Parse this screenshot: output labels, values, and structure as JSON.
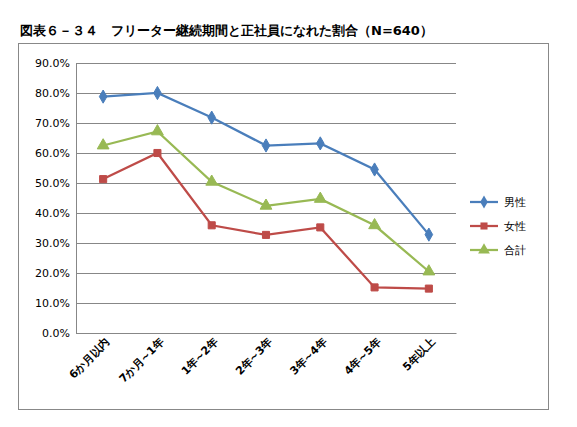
{
  "chart_data": {
    "type": "line",
    "title": "図表６－３４　フリーター継続期間と正社員になれた割合（N=640）",
    "categories": [
      "6か月以内",
      "7か月~1年",
      "1年~2年",
      "2年~3年",
      "3年~4年",
      "4年~5年",
      "5年以上"
    ],
    "series": [
      {
        "name": "男性",
        "color": "#4a7ebb",
        "marker": "diamond",
        "values": [
          78.8,
          80.0,
          71.8,
          62.5,
          63.2,
          54.5,
          32.8
        ]
      },
      {
        "name": "女性",
        "color": "#be4b48",
        "marker": "square",
        "values": [
          51.3,
          60.0,
          35.9,
          32.7,
          35.2,
          15.2,
          14.8
        ]
      },
      {
        "name": "合計",
        "color": "#98b954",
        "marker": "triangle",
        "values": [
          62.5,
          67.2,
          50.4,
          42.4,
          44.7,
          35.9,
          20.5
        ]
      }
    ],
    "ylim": [
      0,
      90
    ],
    "yticks": [
      {
        "value": 0,
        "label": "0.0%"
      },
      {
        "value": 10,
        "label": "10.0%"
      },
      {
        "value": 20,
        "label": "20.0%"
      },
      {
        "value": 30,
        "label": "30.0%"
      },
      {
        "value": 40,
        "label": "40.0%"
      },
      {
        "value": 50,
        "label": "50.0%"
      },
      {
        "value": 60,
        "label": "60.0%"
      },
      {
        "value": 70,
        "label": "70.0%"
      },
      {
        "value": 80,
        "label": "80.0%"
      },
      {
        "value": 90,
        "label": "90.0%"
      }
    ],
    "grid": true,
    "legend": "right"
  }
}
